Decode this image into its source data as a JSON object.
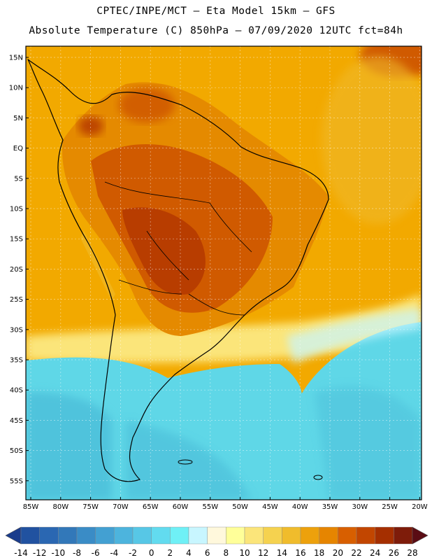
{
  "header": {
    "line1": "CPTEC/INPE/MCT –  Eta Model 15km – GFS",
    "line2": "Absolute Temperature (C) 850hPa – 07/09/2020 12UTC fct=84h"
  },
  "map": {
    "lat_labels": [
      "15N",
      "10N",
      "5N",
      "EQ",
      "5S",
      "10S",
      "15S",
      "20S",
      "25S",
      "30S",
      "35S",
      "40S",
      "45S",
      "50S",
      "55S"
    ],
    "lon_labels": [
      "85W",
      "80W",
      "75W",
      "70W",
      "65W",
      "60W",
      "55W",
      "50W",
      "45W",
      "40W",
      "35W",
      "30W",
      "25W",
      "20W"
    ],
    "colors": {
      "ocean_cold": "#4fc3dc",
      "ocean_cool": "#5fd7e7",
      "warm": "#f2a900",
      "warmer": "#e58a00",
      "hot": "#d05a00",
      "hotter": "#b83d00",
      "coastline": "#000000",
      "grid": "#b0b0b0"
    }
  },
  "colorbar": {
    "ticks": [
      "-14",
      "-12",
      "-10",
      "-8",
      "-6",
      "-4",
      "-2",
      "0",
      "2",
      "4",
      "6",
      "8",
      "10",
      "12",
      "14",
      "16",
      "18",
      "20",
      "22",
      "24",
      "26",
      "28"
    ],
    "colors": [
      "#1a3c8c",
      "#2152a0",
      "#2a67b2",
      "#3278b9",
      "#3a8cc6",
      "#43a0d2",
      "#4db4dd",
      "#57c7e6",
      "#62dbef",
      "#6ff0f6",
      "#c8f6ff",
      "#fff8dc",
      "#ffff99",
      "#fbe57a",
      "#f5d24f",
      "#f0bc2c",
      "#eda10c",
      "#e68500",
      "#d85f00",
      "#c24600",
      "#a52f00",
      "#7e1c0a",
      "#5a0c14"
    ]
  }
}
